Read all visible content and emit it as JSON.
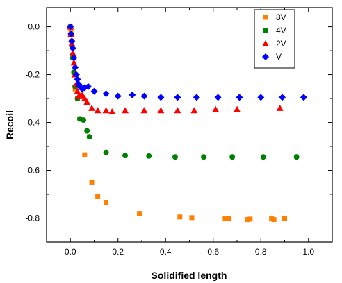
{
  "chart_data": {
    "type": "scatter",
    "title": "",
    "xlabel": "Solidified length",
    "ylabel": "Recoil",
    "xlim": [
      -0.1,
      1.1
    ],
    "ylim": [
      -0.9,
      0.08
    ],
    "xticks": [
      0.0,
      0.2,
      0.4,
      0.6,
      0.8,
      1.0
    ],
    "xtick_labels": [
      "0.0",
      "0.2",
      "0.4",
      "0.6",
      "0.8",
      "1.0"
    ],
    "yticks": [
      0.0,
      -0.2,
      -0.4,
      -0.6,
      -0.8
    ],
    "ytick_labels": [
      "0.0",
      "-0.2",
      "-0.4",
      "-0.6",
      "-0.8"
    ],
    "grid": false,
    "legend_position": "top-right",
    "series": [
      {
        "name": "8V",
        "color": "#ff8000",
        "marker": "square",
        "x": [
          0.0,
          0.002,
          0.005,
          0.01,
          0.015,
          0.02,
          0.03,
          0.04,
          0.06,
          0.09,
          0.115,
          0.15,
          0.29,
          0.46,
          0.51,
          0.65,
          0.665,
          0.745,
          0.755,
          0.845,
          0.855,
          0.9
        ],
        "y": [
          0.0,
          -0.02,
          -0.06,
          -0.12,
          -0.2,
          -0.26,
          -0.3,
          -0.385,
          -0.535,
          -0.65,
          -0.71,
          -0.735,
          -0.78,
          -0.795,
          -0.798,
          -0.803,
          -0.8,
          -0.806,
          -0.804,
          -0.803,
          -0.806,
          -0.8
        ]
      },
      {
        "name": "4V",
        "color": "#008000",
        "marker": "circle",
        "x": [
          0.0,
          0.003,
          0.006,
          0.01,
          0.015,
          0.02,
          0.03,
          0.04,
          0.055,
          0.07,
          0.08,
          0.15,
          0.23,
          0.33,
          0.44,
          0.56,
          0.68,
          0.81,
          0.95
        ],
        "y": [
          0.0,
          -0.03,
          -0.08,
          -0.13,
          -0.19,
          -0.25,
          -0.3,
          -0.385,
          -0.39,
          -0.435,
          -0.46,
          -0.525,
          -0.538,
          -0.54,
          -0.544,
          -0.544,
          -0.544,
          -0.544,
          -0.544
        ]
      },
      {
        "name": "2V",
        "color": "#ff0000",
        "marker": "triangle",
        "x": [
          0.0,
          0.003,
          0.006,
          0.01,
          0.015,
          0.02,
          0.025,
          0.03,
          0.035,
          0.04,
          0.05,
          0.06,
          0.07,
          0.09,
          0.115,
          0.15,
          0.175,
          0.23,
          0.31,
          0.38,
          0.45,
          0.52,
          0.61,
          0.7,
          0.88
        ],
        "y": [
          0.0,
          -0.03,
          -0.07,
          -0.11,
          -0.15,
          -0.2,
          -0.24,
          -0.27,
          -0.29,
          -0.29,
          -0.285,
          -0.3,
          -0.315,
          -0.34,
          -0.35,
          -0.35,
          -0.355,
          -0.35,
          -0.35,
          -0.35,
          -0.35,
          -0.35,
          -0.345,
          -0.345,
          -0.34
        ]
      },
      {
        "name": "V",
        "color": "#0000ff",
        "marker": "diamond",
        "x": [
          0.0,
          0.003,
          0.006,
          0.01,
          0.015,
          0.02,
          0.025,
          0.03,
          0.035,
          0.04,
          0.045,
          0.05,
          0.06,
          0.075,
          0.1,
          0.15,
          0.2,
          0.26,
          0.31,
          0.38,
          0.45,
          0.53,
          0.62,
          0.71,
          0.8,
          0.89,
          0.98
        ],
        "y": [
          0.0,
          -0.03,
          -0.06,
          -0.09,
          -0.13,
          -0.17,
          -0.2,
          -0.22,
          -0.24,
          -0.25,
          -0.255,
          -0.26,
          -0.255,
          -0.25,
          -0.27,
          -0.28,
          -0.29,
          -0.285,
          -0.29,
          -0.295,
          -0.295,
          -0.295,
          -0.295,
          -0.295,
          -0.295,
          -0.295,
          -0.295
        ]
      }
    ]
  }
}
